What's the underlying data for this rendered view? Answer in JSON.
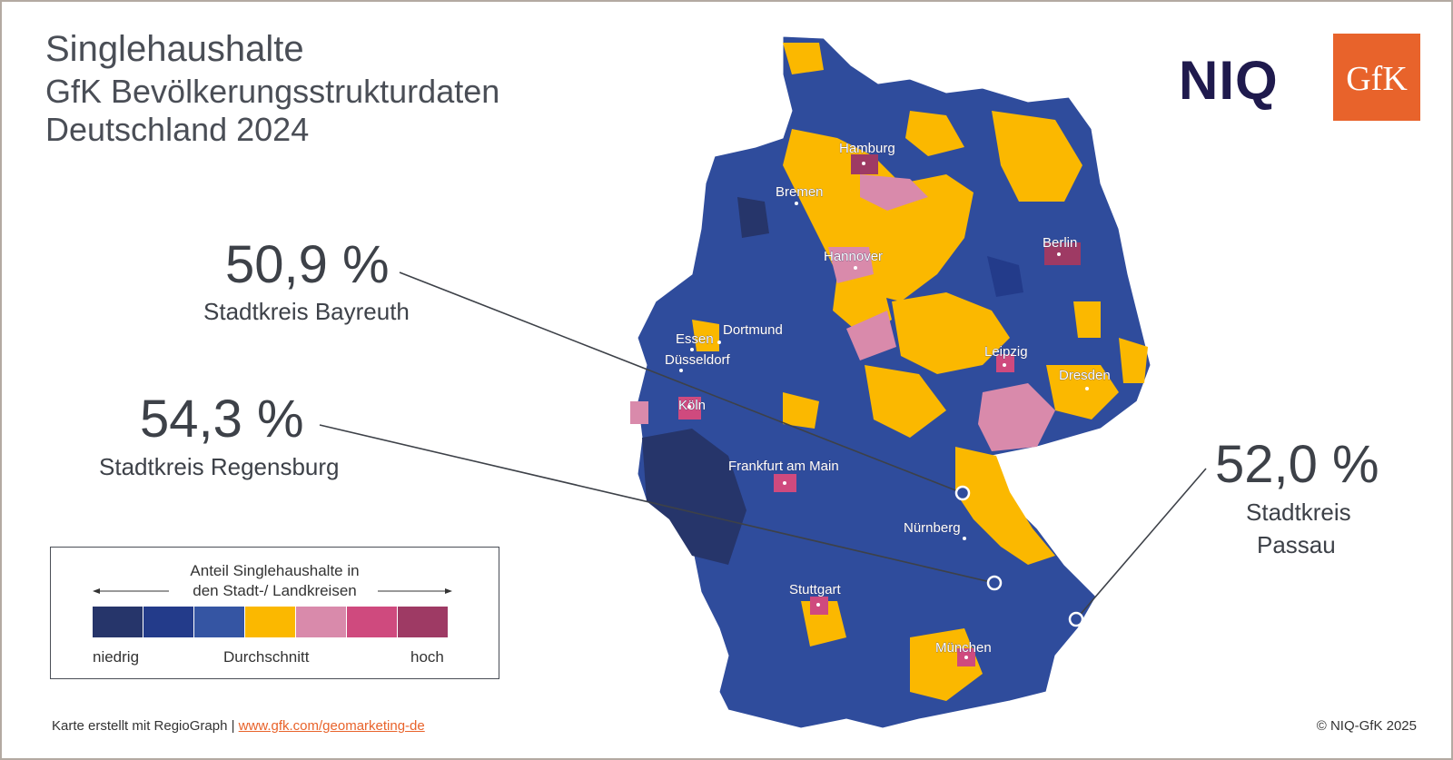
{
  "title": {
    "line1": "Singlehaushalte",
    "line2": "GfK Bevölkerungsstrukturdaten",
    "line3": "Deutschland 2024"
  },
  "logos": {
    "niq": "NIQ",
    "gfk": "GfK"
  },
  "callouts": [
    {
      "value": "50,9 %",
      "label": "Stadtkreis Bayreuth"
    },
    {
      "value": "54,3 %",
      "label": "Stadtkreis Regensburg"
    },
    {
      "value": "52,0 %",
      "label_line1": "Stadtkreis",
      "label_line2": "Passau"
    }
  ],
  "cities": [
    "Hamburg",
    "Bremen",
    "Berlin",
    "Hannover",
    "Essen",
    "Dortmund",
    "Düsseldorf",
    "Leipzig",
    "Dresden",
    "Köln",
    "Frankfurt am Main",
    "Nürnberg",
    "Stuttgart",
    "München"
  ],
  "legend": {
    "title_line1": "Anteil Singlehaushalte in",
    "title_line2": "den Stadt-/ Landkreisen",
    "low": "niedrig",
    "mid": "Durchschnitt",
    "high": "hoch",
    "colors": [
      "#26356a",
      "#233b8a",
      "#3555a3",
      "#fbb800",
      "#d98aab",
      "#cf4a7e",
      "#9e3a64"
    ]
  },
  "footer": {
    "left": "Karte erstellt mit RegioGraph | ",
    "link": "www.gfk.com/geomarketing-de",
    "right": "© NIQ-GfK 2025"
  }
}
